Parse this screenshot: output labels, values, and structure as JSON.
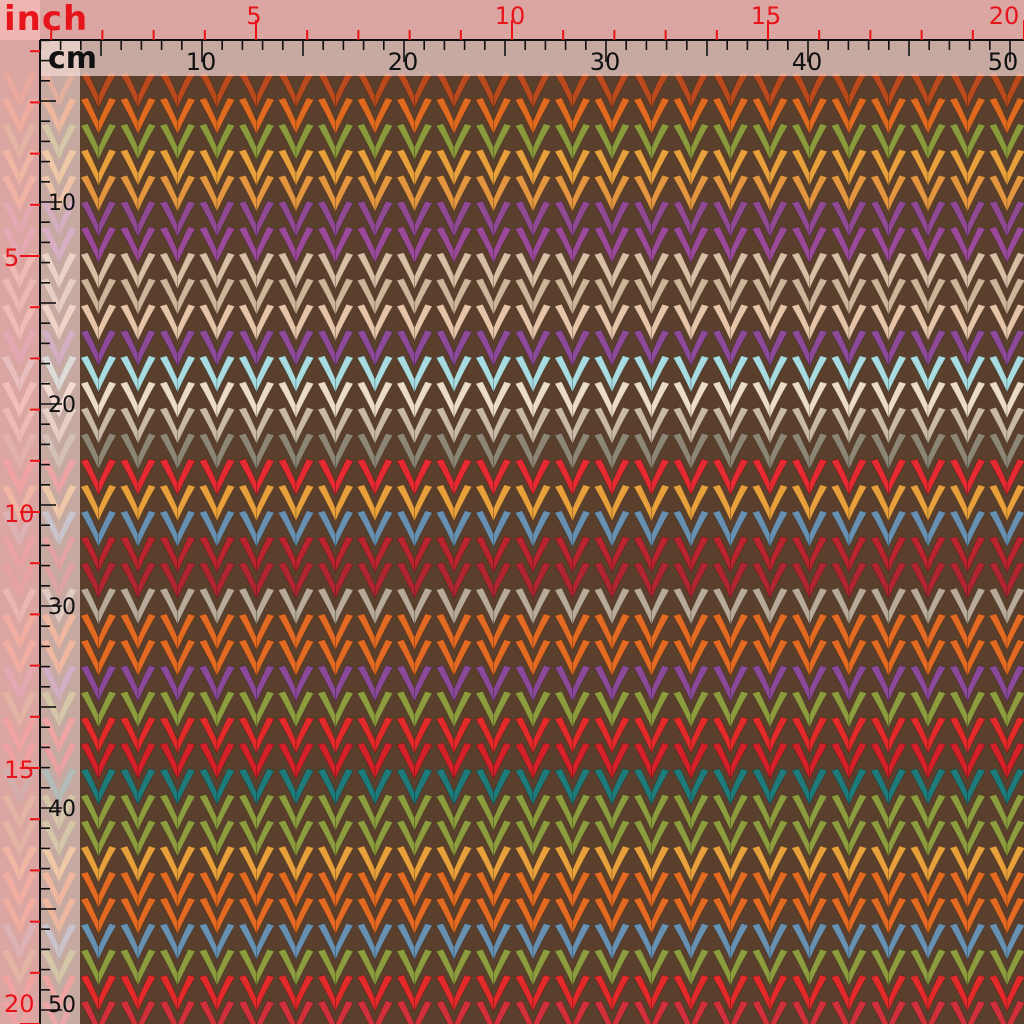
{
  "ruler": {
    "inch_unit": "inch",
    "cm_unit": "cm",
    "inch_top": [
      "5",
      "10",
      "15",
      "20"
    ],
    "cm_top": [
      "10",
      "20",
      "30",
      "40",
      "50"
    ],
    "inch_left": [
      "5",
      "10",
      "15",
      "20"
    ],
    "cm_left": [
      "10",
      "20",
      "30",
      "40",
      "50"
    ]
  },
  "colors": {
    "background": "#5a3f2c",
    "inch_label": "#e8141c",
    "cm_label": "#111111"
  },
  "fabric": {
    "pattern": "knit-chevron-stripes",
    "stripes": [
      "#b84a1e",
      "#e06a20",
      "#8a9a3c",
      "#e8a03c",
      "#e39540",
      "#8f4a92",
      "#9a4a98",
      "#d8bfa4",
      "#ccb498",
      "#e6c4a8",
      "#8c4a98",
      "#a8dce0",
      "#ecdcc6",
      "#c8b8a4",
      "#8e8674",
      "#e52a32",
      "#e8a03c",
      "#6890b0",
      "#b8252e",
      "#b02630",
      "#b8aa98",
      "#e36a22",
      "#e36a22",
      "#8a4a98",
      "#8c9c3e",
      "#e22a2a",
      "#d42028",
      "#1f7a7a",
      "#8c9c3e",
      "#8c9c3e",
      "#e8a03c",
      "#e36a22",
      "#e36a22",
      "#6890b0",
      "#8c9c3e",
      "#e22a2a",
      "#d0303a",
      "#1a8a8a"
    ]
  }
}
